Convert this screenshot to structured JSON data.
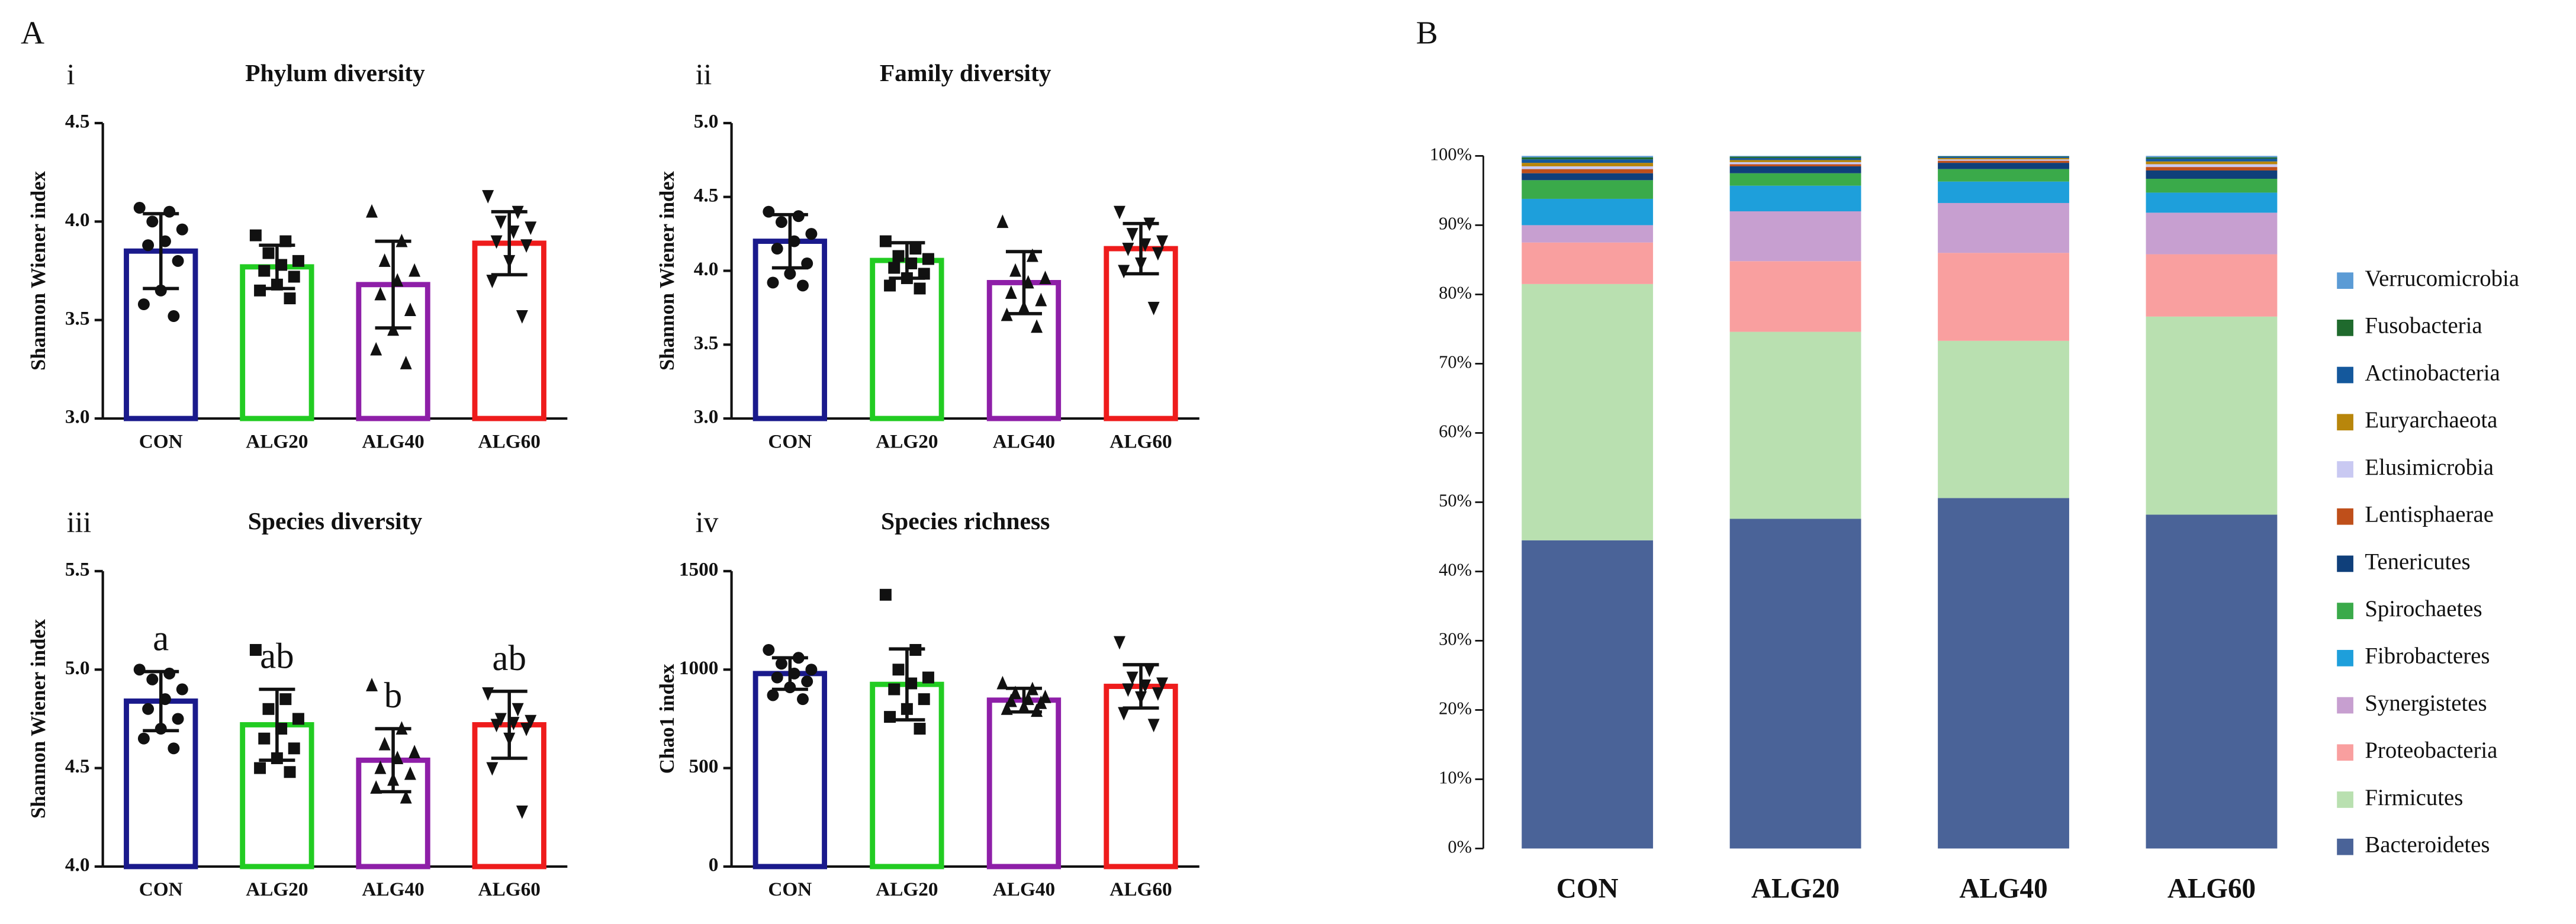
{
  "chart_data": [
    {
      "type": "bar",
      "figure_label": "A",
      "panel": "i",
      "title": "Phylum diversity",
      "ylabel": "Shannon Wiener index",
      "categories": [
        "CON",
        "ALG20",
        "ALG40",
        "ALG60"
      ],
      "colors": [
        "#1a1a8c",
        "#22cc22",
        "#8e1fa8",
        "#ee1c1c"
      ],
      "values": [
        3.85,
        3.77,
        3.68,
        3.89
      ],
      "errors": [
        0.19,
        0.11,
        0.22,
        0.16
      ],
      "points": [
        [
          4.07,
          4.05,
          4.0,
          3.96,
          3.9,
          3.88,
          3.8,
          3.65,
          3.58,
          3.52
        ],
        [
          3.93,
          3.9,
          3.84,
          3.8,
          3.78,
          3.75,
          3.72,
          3.68,
          3.65,
          3.61
        ],
        [
          4.05,
          3.9,
          3.8,
          3.75,
          3.7,
          3.63,
          3.55,
          3.45,
          3.35,
          3.28
        ],
        [
          4.13,
          4.05,
          4.0,
          3.97,
          3.95,
          3.9,
          3.88,
          3.8,
          3.7,
          3.52
        ]
      ],
      "ylim": [
        3.0,
        4.5
      ],
      "yticks": [
        {
          "value": 3.0,
          "label": "3.0"
        },
        3.5,
        {
          "value": 4.0,
          "label": "4.0"
        },
        4.5
      ]
    },
    {
      "type": "bar",
      "panel": "ii",
      "title": "Family diversity",
      "ylabel": "Shannon Wiener index",
      "categories": [
        "CON",
        "ALG20",
        "ALG40",
        "ALG60"
      ],
      "colors": [
        "#1a1a8c",
        "#22cc22",
        "#8e1fa8",
        "#ee1c1c"
      ],
      "values": [
        4.2,
        4.07,
        3.92,
        4.15
      ],
      "errors": [
        0.18,
        0.12,
        0.21,
        0.17
      ],
      "points": [
        [
          4.4,
          4.37,
          4.33,
          4.25,
          4.2,
          4.15,
          4.05,
          3.98,
          3.92,
          3.9
        ],
        [
          4.2,
          4.15,
          4.1,
          4.08,
          4.05,
          4.02,
          3.98,
          3.95,
          3.9,
          3.88
        ],
        [
          4.33,
          4.1,
          4.0,
          3.95,
          3.92,
          3.85,
          3.8,
          3.75,
          3.7,
          3.62
        ],
        [
          4.4,
          4.32,
          4.25,
          4.2,
          4.18,
          4.15,
          4.12,
          4.05,
          4.0,
          3.75
        ]
      ],
      "ylim": [
        3.0,
        5.0
      ],
      "yticks": [
        {
          "value": 3.0,
          "label": "3.0"
        },
        3.5,
        {
          "value": 4.0,
          "label": "4.0"
        },
        4.5,
        {
          "value": 5.0,
          "label": "5.0"
        }
      ]
    },
    {
      "type": "bar",
      "panel": "iii",
      "title": "Species diversity",
      "ylabel": "Shannon Wiener index",
      "categories": [
        "CON",
        "ALG20",
        "ALG40",
        "ALG60"
      ],
      "colors": [
        "#1a1a8c",
        "#22cc22",
        "#8e1fa8",
        "#ee1c1c"
      ],
      "values": [
        4.84,
        4.72,
        4.54,
        4.72
      ],
      "errors": [
        0.15,
        0.18,
        0.16,
        0.17
      ],
      "annotations": [
        "a",
        "ab",
        "b",
        "ab"
      ],
      "points": [
        [
          5.0,
          4.98,
          4.95,
          4.9,
          4.85,
          4.8,
          4.75,
          4.7,
          4.65,
          4.6
        ],
        [
          5.1,
          4.85,
          4.8,
          4.75,
          4.7,
          4.65,
          4.6,
          4.55,
          4.5,
          4.48
        ],
        [
          4.92,
          4.7,
          4.62,
          4.58,
          4.55,
          4.5,
          4.47,
          4.44,
          4.4,
          4.35
        ],
        [
          4.88,
          4.8,
          4.75,
          4.74,
          4.73,
          4.72,
          4.7,
          4.65,
          4.5,
          4.28
        ]
      ],
      "ylim": [
        4.0,
        5.5
      ],
      "yticks": [
        {
          "value": 4.0,
          "label": "4.0"
        },
        4.5,
        {
          "value": 5.0,
          "label": "5.0"
        },
        5.5
      ]
    },
    {
      "type": "bar",
      "panel": "iv",
      "title": "Species richness",
      "ylabel": "Chao1 index",
      "categories": [
        "CON",
        "ALG20",
        "ALG40",
        "ALG60"
      ],
      "colors": [
        "#1a1a8c",
        "#22cc22",
        "#8e1fa8",
        "#ee1c1c"
      ],
      "values": [
        980,
        925,
        845,
        915
      ],
      "errors": [
        80,
        180,
        60,
        110
      ],
      "points": [
        [
          1100,
          1060,
          1030,
          1000,
          980,
          960,
          940,
          910,
          870,
          850
        ],
        [
          1380,
          1100,
          1000,
          960,
          930,
          900,
          850,
          800,
          760,
          700
        ],
        [
          930,
          900,
          880,
          860,
          850,
          840,
          830,
          810,
          800,
          790
        ],
        [
          1140,
          1000,
          960,
          930,
          920,
          900,
          880,
          860,
          780,
          720
        ]
      ],
      "ylim": [
        0,
        1500
      ],
      "yticks": [
        0,
        500,
        1000,
        1500
      ]
    },
    {
      "type": "stacked_bar",
      "panel": "B",
      "categories": [
        "CON",
        "ALG20",
        "ALG40",
        "ALG60"
      ],
      "series": [
        {
          "name": "Bacteroidetes",
          "color": "#4a6398",
          "values": [
            44.5,
            47.6,
            50.6,
            48.2
          ]
        },
        {
          "name": "Firmicutes",
          "color": "#b9e0b0",
          "values": [
            37.0,
            27.0,
            22.7,
            28.6
          ]
        },
        {
          "name": "Proteobacteria",
          "color": "#f99f9f",
          "values": [
            6.0,
            10.2,
            12.7,
            9.0
          ]
        },
        {
          "name": "Synergistetes",
          "color": "#c79fd0",
          "values": [
            2.5,
            7.2,
            7.2,
            6.0
          ]
        },
        {
          "name": "Fibrobacteres",
          "color": "#1e9fdb",
          "values": [
            3.8,
            3.7,
            3.1,
            2.9
          ]
        },
        {
          "name": "Spirochaetes",
          "color": "#3aaa4a",
          "values": [
            2.7,
            1.8,
            1.8,
            2.0
          ]
        },
        {
          "name": "Tenericutes",
          "color": "#0f3f7a",
          "values": [
            1.0,
            1.0,
            0.9,
            1.2
          ]
        },
        {
          "name": "Lentisphaerae",
          "color": "#bf4f1a",
          "values": [
            0.6,
            0.3,
            0.3,
            0.5
          ]
        },
        {
          "name": "Elusimicrobia",
          "color": "#c9c9f2",
          "values": [
            0.4,
            0.3,
            0.2,
            0.4
          ]
        },
        {
          "name": "Euryarchaeota",
          "color": "#b8860b",
          "values": [
            0.5,
            0.3,
            0.2,
            0.4
          ]
        },
        {
          "name": "Actinobacteria",
          "color": "#14589c",
          "values": [
            0.5,
            0.3,
            0.2,
            0.4
          ]
        },
        {
          "name": "Fusobacteria",
          "color": "#1f6a2d",
          "values": [
            0.3,
            0.2,
            0.05,
            0.2
          ]
        },
        {
          "name": "Verrucomicrobia",
          "color": "#5b9bd5",
          "values": [
            0.2,
            0.1,
            0.05,
            0.2
          ]
        }
      ],
      "ylim": [
        0,
        100
      ],
      "yticks": [
        {
          "value": 0,
          "label": "0%"
        },
        {
          "value": 10,
          "label": "10%"
        },
        {
          "value": 20,
          "label": "20%"
        },
        {
          "value": 30,
          "label": "30%"
        },
        {
          "value": 40,
          "label": "40%"
        },
        {
          "value": 50,
          "label": "50%"
        },
        {
          "value": 60,
          "label": "60%"
        },
        {
          "value": 70,
          "label": "70%"
        },
        {
          "value": 80,
          "label": "80%"
        },
        {
          "value": 90,
          "label": "90%"
        },
        {
          "value": 100,
          "label": "100%"
        }
      ]
    }
  ]
}
